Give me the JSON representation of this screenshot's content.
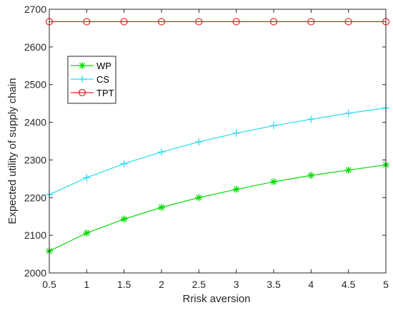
{
  "chart_data": {
    "type": "line",
    "title": "",
    "xlabel": "Rrisk aversion",
    "ylabel": "Expected utility of supply chain",
    "xlim": [
      0.5,
      5
    ],
    "ylim": [
      2000,
      2700
    ],
    "xticks": [
      "0.5",
      "1",
      "1.5",
      "2",
      "2.5",
      "3",
      "3.5",
      "4",
      "4.5",
      "5"
    ],
    "yticks": [
      "2000",
      "2100",
      "2200",
      "2300",
      "2400",
      "2500",
      "2600",
      "2700"
    ],
    "x": [
      0.5,
      1,
      1.5,
      2,
      2.5,
      3,
      3.5,
      4,
      4.5,
      5
    ],
    "grid": false,
    "legend_position": "top-left",
    "series": [
      {
        "name": "WP",
        "color": "#00dd00",
        "marker": "asterisk",
        "values": [
          2058,
          2106,
          2143,
          2174,
          2200,
          2222,
          2242,
          2259,
          2273,
          2287
        ]
      },
      {
        "name": "CS",
        "color": "#22ddee",
        "marker": "plus",
        "values": [
          2208,
          2253,
          2290,
          2321,
          2348,
          2371,
          2391,
          2408,
          2424,
          2438
        ]
      },
      {
        "name": "TPT",
        "color": "#e02020",
        "marker": "circle",
        "values": [
          2667,
          2667,
          2667,
          2667,
          2667,
          2667,
          2667,
          2667,
          2667,
          2667
        ]
      }
    ]
  }
}
